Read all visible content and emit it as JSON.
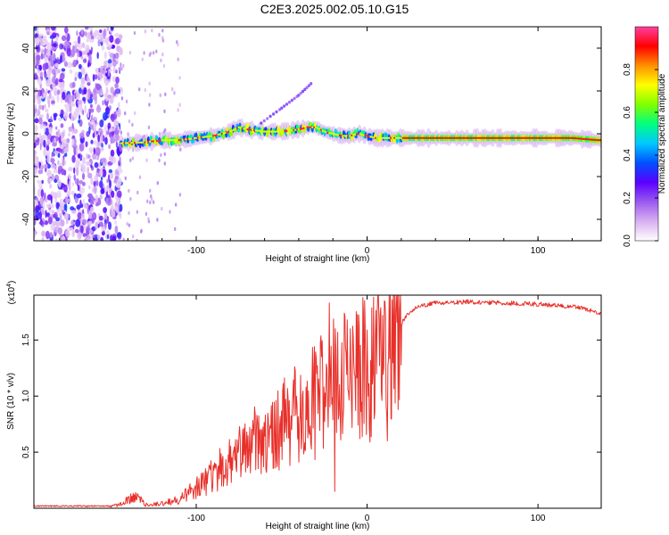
{
  "figure_title": "C2E3.2025.002.05.10.G15",
  "chart_data": [
    {
      "type": "heatmap",
      "xlabel": "Height of straight line (km)",
      "ylabel": "Frequency (Hz)",
      "xlim": [
        -195,
        137
      ],
      "ylim": [
        -50,
        50
      ],
      "xticks": [
        {
          "v": -100,
          "label": "-100"
        },
        {
          "v": 0,
          "label": "0"
        },
        {
          "v": 100,
          "label": "100"
        }
      ],
      "yticks": [
        {
          "v": -40,
          "label": "-40"
        },
        {
          "v": -20,
          "label": "-20"
        },
        {
          "v": 0,
          "label": "0"
        },
        {
          "v": 20,
          "label": "20"
        },
        {
          "v": 40,
          "label": "40"
        }
      ],
      "colorbar": {
        "label": "Normalized spectral amplitude",
        "range": [
          0,
          1
        ],
        "ticks": [
          {
            "v": 0.0,
            "label": "0.0"
          },
          {
            "v": 0.2,
            "label": "0.2"
          },
          {
            "v": 0.4,
            "label": "0.4"
          },
          {
            "v": 0.6,
            "label": "0.6"
          },
          {
            "v": 0.8,
            "label": "0.8"
          }
        ],
        "colormap": [
          "#ffffff",
          "#d8b0f0",
          "#9b59f0",
          "#5a00ff",
          "#0050ff",
          "#00c8ff",
          "#00ff80",
          "#80ff00",
          "#ffff00",
          "#ff9000",
          "#ff0000",
          "#ff40a0"
        ]
      },
      "noise_region_x": [
        -195,
        -144
      ],
      "ridge": [
        [
          -145,
          -4.5
        ],
        [
          -130,
          -4
        ],
        [
          -120,
          -3
        ],
        [
          -110,
          -3
        ],
        [
          -100,
          -2
        ],
        [
          -90,
          -1
        ],
        [
          -80,
          1
        ],
        [
          -75,
          3
        ],
        [
          -70,
          2
        ],
        [
          -60,
          1
        ],
        [
          -50,
          1
        ],
        [
          -40,
          2
        ],
        [
          -35,
          3
        ],
        [
          -30,
          3
        ],
        [
          -25,
          1
        ],
        [
          -20,
          0
        ],
        [
          -15,
          -1
        ],
        [
          -10,
          -1
        ],
        [
          -5,
          0
        ],
        [
          0,
          -1
        ],
        [
          5,
          -2
        ],
        [
          10,
          -2
        ],
        [
          20,
          -2
        ],
        [
          40,
          -2
        ],
        [
          60,
          -2
        ],
        [
          80,
          -2
        ],
        [
          100,
          -2
        ],
        [
          120,
          -2
        ],
        [
          135,
          -3
        ]
      ],
      "branch": [
        [
          -62,
          5
        ],
        [
          -50,
          12
        ],
        [
          -40,
          18
        ],
        [
          -32,
          24
        ]
      ]
    },
    {
      "type": "line",
      "xlabel": "Height of straight line (km)",
      "ylabel": "SNR (10 * v/v)",
      "y_multiplier": "(x10",
      "y_multiplier_exp": "4",
      "y_multiplier_close": ")",
      "xlim": [
        -195,
        137
      ],
      "ylim": [
        0,
        1.9
      ],
      "line_color": "#e8302a",
      "xticks": [
        {
          "v": -100,
          "label": "-100"
        },
        {
          "v": 0,
          "label": "0"
        },
        {
          "v": 100,
          "label": "100"
        }
      ],
      "yticks": [
        {
          "v": 0.5,
          "label": "0.5"
        },
        {
          "v": 1.0,
          "label": "1.0"
        },
        {
          "v": 1.5,
          "label": "1.5"
        }
      ],
      "envelope": [
        [
          -195,
          0.02
        ],
        [
          -150,
          0.02
        ],
        [
          -145,
          0.03
        ],
        [
          -135,
          0.12
        ],
        [
          -130,
          0.03
        ],
        [
          -120,
          0.04
        ],
        [
          -110,
          0.08
        ],
        [
          -100,
          0.18
        ],
        [
          -90,
          0.3
        ],
        [
          -80,
          0.45
        ],
        [
          -70,
          0.55
        ],
        [
          -60,
          0.65
        ],
        [
          -50,
          0.75
        ],
        [
          -40,
          0.85
        ],
        [
          -30,
          0.95
        ],
        [
          -20,
          1.1
        ],
        [
          -10,
          1.15
        ],
        [
          0,
          1.25
        ],
        [
          10,
          1.3
        ],
        [
          15,
          1.4
        ],
        [
          20,
          1.65
        ],
        [
          25,
          1.75
        ],
        [
          30,
          1.8
        ],
        [
          40,
          1.83
        ],
        [
          60,
          1.84
        ],
        [
          80,
          1.83
        ],
        [
          100,
          1.82
        ],
        [
          120,
          1.8
        ],
        [
          130,
          1.77
        ],
        [
          137,
          1.73
        ]
      ],
      "spikes": [
        {
          "x": -22,
          "y": 1.83
        },
        {
          "x": -19,
          "y": 0.15
        },
        {
          "x": -10,
          "y": 1.6
        },
        {
          "x": -2,
          "y": 1.75
        },
        {
          "x": 5,
          "y": 1.55
        },
        {
          "x": 10,
          "y": 1.85
        },
        {
          "x": 12,
          "y": 0.6
        },
        {
          "x": 14,
          "y": 0.8
        }
      ]
    }
  ]
}
